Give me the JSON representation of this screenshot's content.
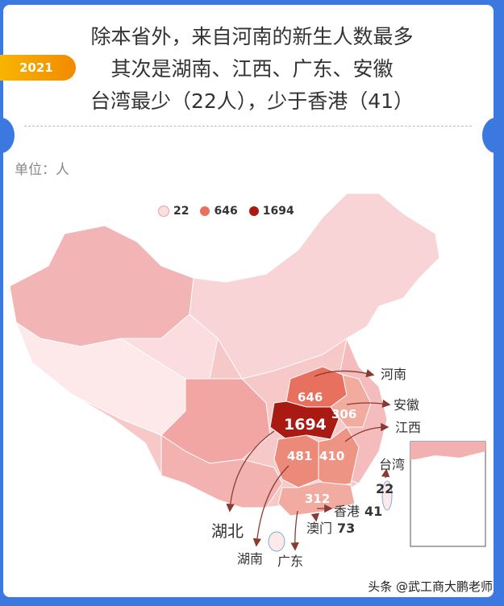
{
  "header": {
    "badge": "2021",
    "title_lines": [
      "除本省外，来自河南的新生人数最多",
      "其次是湖南、江西、广东、安徽",
      "台湾最少（22人），少于香港（41）"
    ]
  },
  "unit_label": "单位：人",
  "legend": [
    {
      "label": "22",
      "color": "#fbe0e2"
    },
    {
      "label": "646",
      "color": "#e8705e"
    },
    {
      "label": "1694",
      "color": "#a81a12"
    }
  ],
  "regions": {
    "hubei": {
      "name": "湖北",
      "value": "1694",
      "color": "#a81a12"
    },
    "henan": {
      "name": "河南",
      "value": "646",
      "color": "#e8705e"
    },
    "hunan": {
      "name": "湖南",
      "value": "481",
      "color": "#ec8a7a"
    },
    "jiangxi": {
      "name": "江西",
      "value": "410",
      "color": "#ee9485"
    },
    "anhui": {
      "name": "安徽",
      "value": "306",
      "color": "#f2ab9f"
    },
    "guangdong": {
      "name": "广东",
      "value": "312",
      "color": "#f2aba0"
    },
    "hongkong": {
      "name": "香港",
      "value": "41"
    },
    "macau": {
      "name": "澳门",
      "value": "73"
    },
    "taiwan": {
      "name": "台湾",
      "value": "22"
    }
  },
  "watermark": "头条 @武工商大鹏老师"
}
